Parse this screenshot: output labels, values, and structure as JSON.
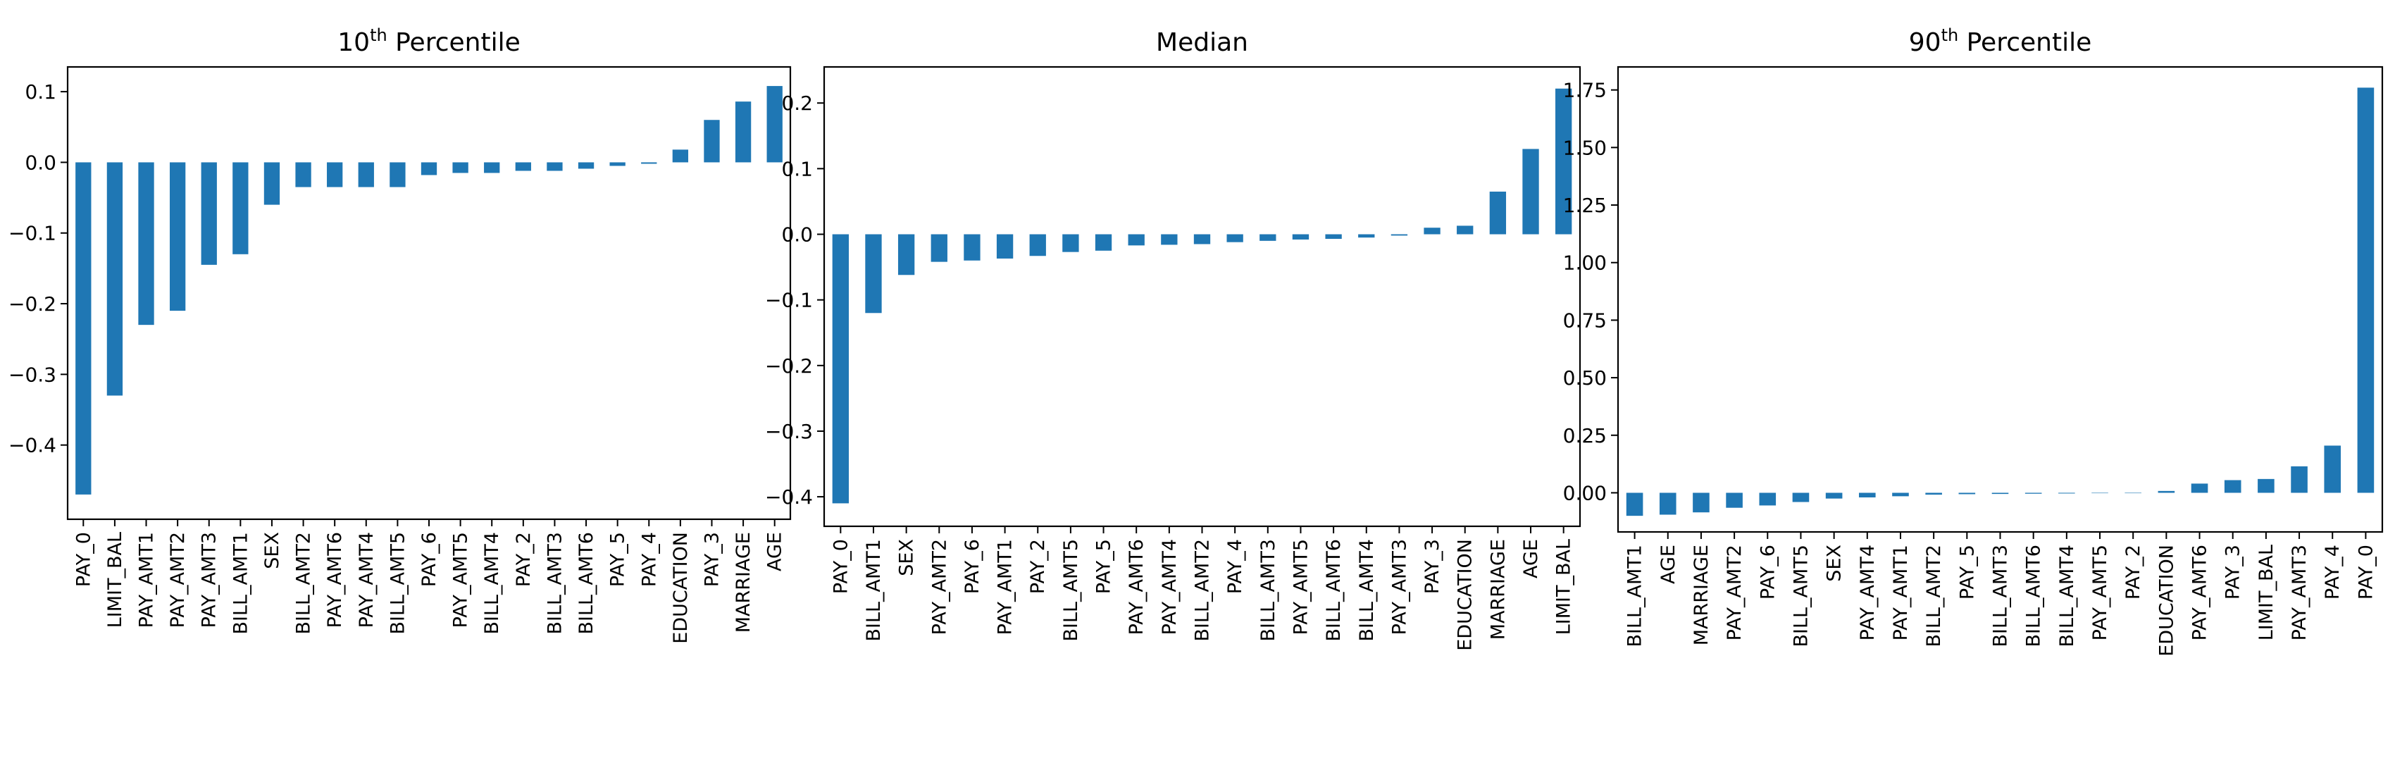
{
  "chart_data": [
    {
      "type": "bar",
      "title": {
        "base": "10",
        "sup": "th",
        "rest": " Percentile"
      },
      "categories": [
        "PAY_0",
        "LIMIT_BAL",
        "PAY_AMT1",
        "PAY_AMT2",
        "PAY_AMT3",
        "BILL_AMT1",
        "SEX",
        "BILL_AMT2",
        "PAY_AMT6",
        "PAY_AMT4",
        "BILL_AMT5",
        "PAY_6",
        "PAY_AMT5",
        "BILL_AMT4",
        "PAY_2",
        "BILL_AMT3",
        "BILL_AMT6",
        "PAY_5",
        "PAY_4",
        "EDUCATION",
        "PAY_3",
        "MARRIAGE",
        "AGE"
      ],
      "values": [
        -0.47,
        -0.33,
        -0.23,
        -0.21,
        -0.145,
        -0.13,
        -0.06,
        -0.035,
        -0.035,
        -0.035,
        -0.035,
        -0.018,
        -0.015,
        -0.015,
        -0.012,
        -0.012,
        -0.009,
        -0.005,
        -0.002,
        0.018,
        0.06,
        0.086,
        0.108
      ],
      "ylim": [
        -0.505,
        0.135
      ],
      "yticks": [
        -0.4,
        -0.3,
        -0.2,
        -0.1,
        0.0,
        0.1
      ],
      "ytick_labels": [
        "−0.4",
        "−0.3",
        "−0.2",
        "−0.1",
        "0.0",
        "0.1"
      ],
      "grid": false,
      "color": "#1f77b4",
      "xlabel": "",
      "ylabel": ""
    },
    {
      "type": "bar",
      "title": {
        "base": "Median",
        "sup": "",
        "rest": ""
      },
      "categories": [
        "PAY_0",
        "BILL_AMT1",
        "SEX",
        "PAY_AMT2",
        "PAY_6",
        "PAY_AMT1",
        "PAY_2",
        "BILL_AMT5",
        "PAY_5",
        "PAY_AMT6",
        "PAY_AMT4",
        "BILL_AMT2",
        "PAY_4",
        "BILL_AMT3",
        "PAY_AMT5",
        "BILL_AMT6",
        "BILL_AMT4",
        "PAY_AMT3",
        "PAY_3",
        "EDUCATION",
        "MARRIAGE",
        "AGE",
        "LIMIT_BAL"
      ],
      "values": [
        -0.41,
        -0.12,
        -0.062,
        -0.042,
        -0.04,
        -0.037,
        -0.033,
        -0.027,
        -0.025,
        -0.017,
        -0.016,
        -0.015,
        -0.012,
        -0.01,
        -0.008,
        -0.007,
        -0.005,
        -0.002,
        0.01,
        0.013,
        0.065,
        0.13,
        0.222
      ],
      "ylim": [
        -0.445,
        0.255
      ],
      "yticks": [
        -0.4,
        -0.3,
        -0.2,
        -0.1,
        0.0,
        0.1,
        0.2
      ],
      "ytick_labels": [
        "−0.4",
        "−0.3",
        "−0.2",
        "−0.1",
        "0.0",
        "0.1",
        "0.2"
      ],
      "grid": false,
      "color": "#1f77b4",
      "xlabel": "",
      "ylabel": ""
    },
    {
      "type": "bar",
      "title": {
        "base": "90",
        "sup": "th",
        "rest": " Percentile"
      },
      "categories": [
        "BILL_AMT1",
        "AGE",
        "MARRIAGE",
        "PAY_AMT2",
        "PAY_6",
        "BILL_AMT5",
        "SEX",
        "PAY_AMT4",
        "PAY_AMT1",
        "BILL_AMT2",
        "PAY_5",
        "BILL_AMT3",
        "BILL_AMT6",
        "BILL_AMT4",
        "PAY_AMT5",
        "PAY_2",
        "EDUCATION",
        "PAY_AMT6",
        "PAY_3",
        "LIMIT_BAL",
        "PAY_AMT3",
        "PAY_4",
        "PAY_0"
      ],
      "values": [
        -0.1,
        -0.095,
        -0.085,
        -0.065,
        -0.055,
        -0.04,
        -0.025,
        -0.02,
        -0.015,
        -0.008,
        -0.006,
        -0.005,
        -0.004,
        -0.003,
        -0.001,
        0.0,
        0.008,
        0.04,
        0.055,
        0.06,
        0.115,
        0.205,
        1.76
      ],
      "ylim": [
        -0.17,
        1.85
      ],
      "yticks": [
        0.0,
        0.25,
        0.5,
        0.75,
        1.0,
        1.25,
        1.5,
        1.75
      ],
      "ytick_labels": [
        "0.00",
        "0.25",
        "0.50",
        "0.75",
        "1.00",
        "1.25",
        "1.50",
        "1.75"
      ],
      "grid": false,
      "color": "#1f77b4",
      "xlabel": "",
      "ylabel": ""
    }
  ]
}
